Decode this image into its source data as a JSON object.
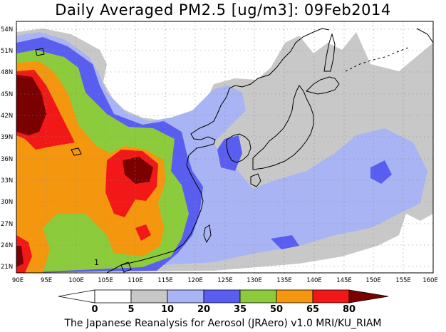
{
  "title": "Daily Averaged PM2.5 [ug/m3]: 09Feb2014",
  "footer": "The Japanese Reanalysis for Aerosol (JRAero) v1.0 MRI/KU_RIAM",
  "map": {
    "projection": "lat-lon",
    "lon_range": [
      90,
      160
    ],
    "lat_range": [
      20,
      55
    ],
    "grid": "dotted",
    "lon_ticks": [
      "90E",
      "95E",
      "100E",
      "105E",
      "110E",
      "115E",
      "120E",
      "125E",
      "130E",
      "135E",
      "140E",
      "145E",
      "150E",
      "155E",
      "160E"
    ],
    "lat_ticks": [
      "21N",
      "24N",
      "27N",
      "30N",
      "33N",
      "36N",
      "39N",
      "42N",
      "45N",
      "48N",
      "51N",
      "54N"
    ],
    "inline_label": "1"
  },
  "colorbar": {
    "levels": [
      "0",
      "5",
      "10",
      "20",
      "35",
      "50",
      "65",
      "80"
    ],
    "colors": {
      "below0": "#ffffff",
      "c0_5": "#ffffff",
      "c5_10": "#c8c8c8",
      "c10_20": "#a8b4f4",
      "c20_35": "#5a5ef0",
      "c35_50": "#8ccc3c",
      "c50_65": "#f5960f",
      "c65_80": "#f31818",
      "above80": "#7b0000"
    }
  },
  "colors": {
    "coast": "#000000",
    "grid": "#888888"
  }
}
